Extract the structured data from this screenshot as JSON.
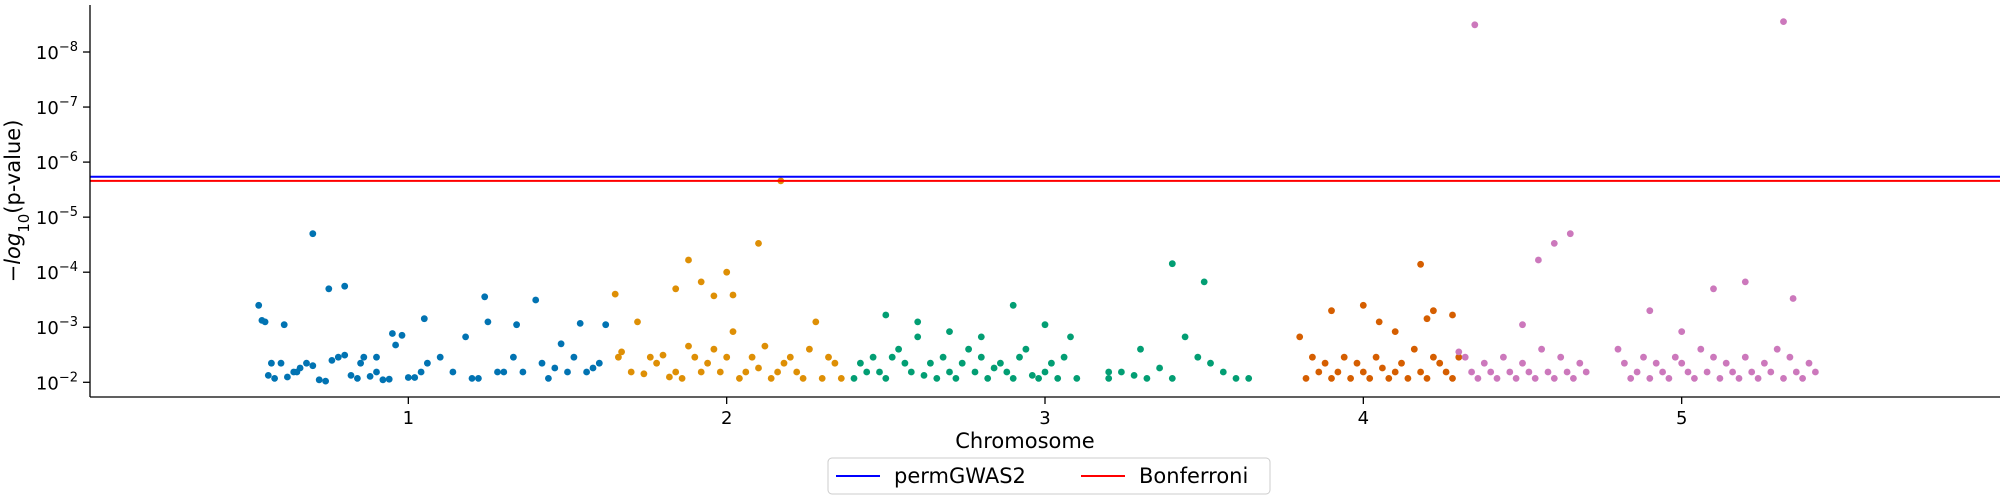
{
  "chart_data": {
    "type": "scatter",
    "title": "",
    "xlabel": "Chromosome",
    "ylabel_main": "−log",
    "ylabel_sub": "10",
    "ylabel_tail": "(p-value)",
    "y_scale": "log (inverted p-value)",
    "ylim": [
      0.0185,
      1.4e-09
    ],
    "y_ticks": [
      {
        "base": "10",
        "exp": "−2",
        "value": 0.01
      },
      {
        "base": "10",
        "exp": "−3",
        "value": 0.001
      },
      {
        "base": "10",
        "exp": "−4",
        "value": 0.0001
      },
      {
        "base": "10",
        "exp": "−5",
        "value": 1e-05
      },
      {
        "base": "10",
        "exp": "−6",
        "value": 1e-06
      },
      {
        "base": "10",
        "exp": "−7",
        "value": 1e-07
      },
      {
        "base": "10",
        "exp": "−8",
        "value": 1e-08
      }
    ],
    "chromosomes": [
      {
        "label": "1",
        "color": "#0173b2",
        "tick_position": 1,
        "x": [
          0.53,
          0.54,
          0.55,
          0.56,
          0.57,
          0.58,
          0.6,
          0.61,
          0.62,
          0.64,
          0.65,
          0.66,
          0.68,
          0.7,
          0.72,
          0.74,
          0.76,
          0.78,
          0.8,
          0.82,
          0.84,
          0.86,
          0.88,
          0.9,
          0.92,
          0.94,
          0.96,
          0.98,
          1.0,
          1.02,
          1.04,
          1.06,
          1.1,
          1.14,
          1.18,
          1.2,
          1.22,
          1.25,
          1.28,
          1.3,
          1.33,
          1.36,
          1.4,
          1.44,
          1.46,
          1.48,
          1.5,
          1.52,
          1.54,
          1.56,
          1.58,
          1.6,
          1.62,
          0.7,
          0.75,
          0.8,
          0.85,
          0.9,
          0.95,
          1.05,
          1.24,
          1.34,
          1.42
        ],
        "y": [
          0.0004,
          0.00075,
          0.0008,
          0.0075,
          0.0045,
          0.0085,
          0.0045,
          0.0009,
          0.008,
          0.0065,
          0.0065,
          0.0055,
          0.0045,
          0.005,
          0.009,
          0.0095,
          0.004,
          0.0035,
          0.0032,
          0.0075,
          0.0085,
          0.0035,
          0.0078,
          0.0035,
          0.009,
          0.0088,
          0.0021,
          0.0014,
          0.0082,
          0.0082,
          0.0065,
          0.0045,
          0.0035,
          0.0065,
          0.0015,
          0.0085,
          0.0085,
          0.0008,
          0.0065,
          0.0065,
          0.0035,
          0.0065,
          0.00032,
          0.0085,
          0.0055,
          0.002,
          0.0065,
          0.0035,
          0.00085,
          0.0065,
          0.0055,
          0.0045,
          0.0009,
          2e-05,
          0.0002,
          0.00018,
          0.0045,
          0.0065,
          0.0013,
          0.0007,
          0.00028,
          0.0009,
          0.0045
        ]
      },
      {
        "label": "2",
        "color": "#de8f05",
        "tick_position": 2,
        "x": [
          1.65,
          1.66,
          1.67,
          1.7,
          1.72,
          1.74,
          1.76,
          1.78,
          1.8,
          1.82,
          1.84,
          1.86,
          1.88,
          1.9,
          1.92,
          1.94,
          1.96,
          1.98,
          2.0,
          2.02,
          2.04,
          2.06,
          2.08,
          2.1,
          2.12,
          2.14,
          2.16,
          2.18,
          2.2,
          2.22,
          2.24,
          2.26,
          2.28,
          2.3,
          2.32,
          2.34,
          2.36,
          1.84,
          1.88,
          1.92,
          1.96,
          2.0,
          2.02,
          2.1,
          2.17
        ],
        "y": [
          0.00025,
          0.0035,
          0.0028,
          0.0065,
          0.0008,
          0.007,
          0.0035,
          0.0045,
          0.0032,
          0.008,
          0.0065,
          0.0085,
          0.0022,
          0.0035,
          0.0065,
          0.0045,
          0.0025,
          0.0065,
          0.0035,
          0.0012,
          0.0085,
          0.0065,
          0.0035,
          0.0055,
          0.0022,
          0.0085,
          0.0065,
          0.0045,
          0.0035,
          0.0065,
          0.0085,
          0.0025,
          0.0008,
          0.0085,
          0.0035,
          0.0045,
          0.0085,
          0.0002,
          6e-05,
          0.00015,
          0.00027,
          0.0001,
          0.00026,
          3e-05,
          2.2e-06
        ]
      },
      {
        "label": "3",
        "color": "#029e73",
        "tick_position": 3,
        "x": [
          2.4,
          2.42,
          2.44,
          2.46,
          2.48,
          2.5,
          2.52,
          2.54,
          2.56,
          2.58,
          2.6,
          2.62,
          2.64,
          2.66,
          2.68,
          2.7,
          2.72,
          2.74,
          2.76,
          2.78,
          2.8,
          2.82,
          2.84,
          2.86,
          2.88,
          2.9,
          2.92,
          2.94,
          2.96,
          2.98,
          3.0,
          3.02,
          3.04,
          3.06,
          3.08,
          3.1,
          2.5,
          2.6,
          2.7,
          2.8,
          2.9,
          3.0,
          3.2,
          3.24,
          3.28,
          3.32,
          3.36,
          3.4,
          3.44,
          3.48,
          3.52,
          3.56,
          3.6,
          3.64,
          3.4,
          3.5,
          3.2,
          3.3
        ],
        "y": [
          0.0085,
          0.0045,
          0.0065,
          0.0035,
          0.0065,
          0.0085,
          0.0035,
          0.0025,
          0.0045,
          0.0065,
          0.0015,
          0.0075,
          0.0045,
          0.0085,
          0.0035,
          0.0065,
          0.0085,
          0.0045,
          0.0025,
          0.0065,
          0.0035,
          0.0085,
          0.0055,
          0.0045,
          0.0065,
          0.0085,
          0.0035,
          0.0025,
          0.0075,
          0.0085,
          0.0065,
          0.0045,
          0.0085,
          0.0035,
          0.0015,
          0.0085,
          0.0006,
          0.0008,
          0.0012,
          0.0015,
          0.0004,
          0.0009,
          0.0085,
          0.0065,
          0.0075,
          0.0085,
          0.0055,
          0.0085,
          0.0015,
          0.0035,
          0.0045,
          0.0065,
          0.0085,
          0.0085,
          7e-05,
          0.00015,
          0.0065,
          0.0025
        ]
      },
      {
        "label": "4",
        "color": "#d55e00",
        "tick_position": 4,
        "x": [
          3.8,
          3.82,
          3.84,
          3.86,
          3.88,
          3.9,
          3.92,
          3.94,
          3.96,
          3.98,
          4.0,
          4.02,
          4.04,
          4.06,
          4.08,
          4.1,
          4.12,
          4.14,
          4.16,
          4.18,
          4.2,
          4.22,
          4.24,
          4.26,
          4.28,
          4.3,
          3.9,
          4.0,
          4.05,
          4.1,
          4.2,
          4.28,
          4.18,
          4.22
        ],
        "y": [
          0.0015,
          0.0085,
          0.0035,
          0.0065,
          0.0045,
          0.0085,
          0.0065,
          0.0035,
          0.0085,
          0.0045,
          0.0065,
          0.0085,
          0.0035,
          0.0055,
          0.0085,
          0.0065,
          0.0045,
          0.0085,
          0.0025,
          0.0065,
          0.0085,
          0.0035,
          0.0045,
          0.0065,
          0.0085,
          0.0035,
          0.0005,
          0.0004,
          0.0008,
          0.0012,
          0.0007,
          0.0006,
          7.2e-05,
          0.0005
        ]
      },
      {
        "label": "5",
        "color": "#cc78bc",
        "tick_position": 5,
        "x": [
          4.3,
          4.32,
          4.34,
          4.36,
          4.38,
          4.4,
          4.42,
          4.44,
          4.46,
          4.48,
          4.5,
          4.52,
          4.54,
          4.56,
          4.58,
          4.6,
          4.62,
          4.64,
          4.66,
          4.68,
          4.7,
          4.8,
          4.82,
          4.84,
          4.86,
          4.88,
          4.9,
          4.92,
          4.94,
          4.96,
          4.98,
          5.0,
          5.02,
          5.04,
          5.06,
          5.08,
          5.1,
          5.12,
          5.14,
          5.16,
          5.18,
          5.2,
          5.22,
          5.24,
          5.26,
          5.28,
          5.3,
          5.32,
          5.34,
          5.36,
          5.38,
          5.4,
          5.42,
          4.5,
          4.55,
          4.6,
          4.65,
          4.9,
          5.0,
          5.1,
          5.2,
          5.35,
          4.35,
          5.32
        ],
        "y": [
          0.0028,
          0.0035,
          0.0065,
          0.0085,
          0.0045,
          0.0065,
          0.0085,
          0.0035,
          0.0065,
          0.0085,
          0.0045,
          0.0065,
          0.0085,
          0.0025,
          0.0065,
          0.0085,
          0.0035,
          0.0065,
          0.0085,
          0.0045,
          0.0065,
          0.0025,
          0.0045,
          0.0085,
          0.0065,
          0.0035,
          0.0085,
          0.0045,
          0.0065,
          0.0085,
          0.0035,
          0.0045,
          0.0065,
          0.0085,
          0.0025,
          0.0065,
          0.0035,
          0.0085,
          0.0045,
          0.0065,
          0.0085,
          0.0035,
          0.0065,
          0.0085,
          0.0045,
          0.0065,
          0.0025,
          0.0085,
          0.0035,
          0.0065,
          0.0085,
          0.0045,
          0.0065,
          0.0009,
          6e-05,
          3e-05,
          2e-05,
          0.0005,
          0.0012,
          0.0002,
          0.00015,
          0.0003,
          3.2e-09,
          2.8e-09
        ]
      }
    ],
    "lines": [
      {
        "name": "permGWAS2",
        "value": 1.85e-06,
        "color": "#0000ff"
      },
      {
        "name": "Bonferroni",
        "value": 2.2e-06,
        "color": "#ff0000"
      }
    ],
    "legend_placement": "bottom-center",
    "grid": false
  }
}
